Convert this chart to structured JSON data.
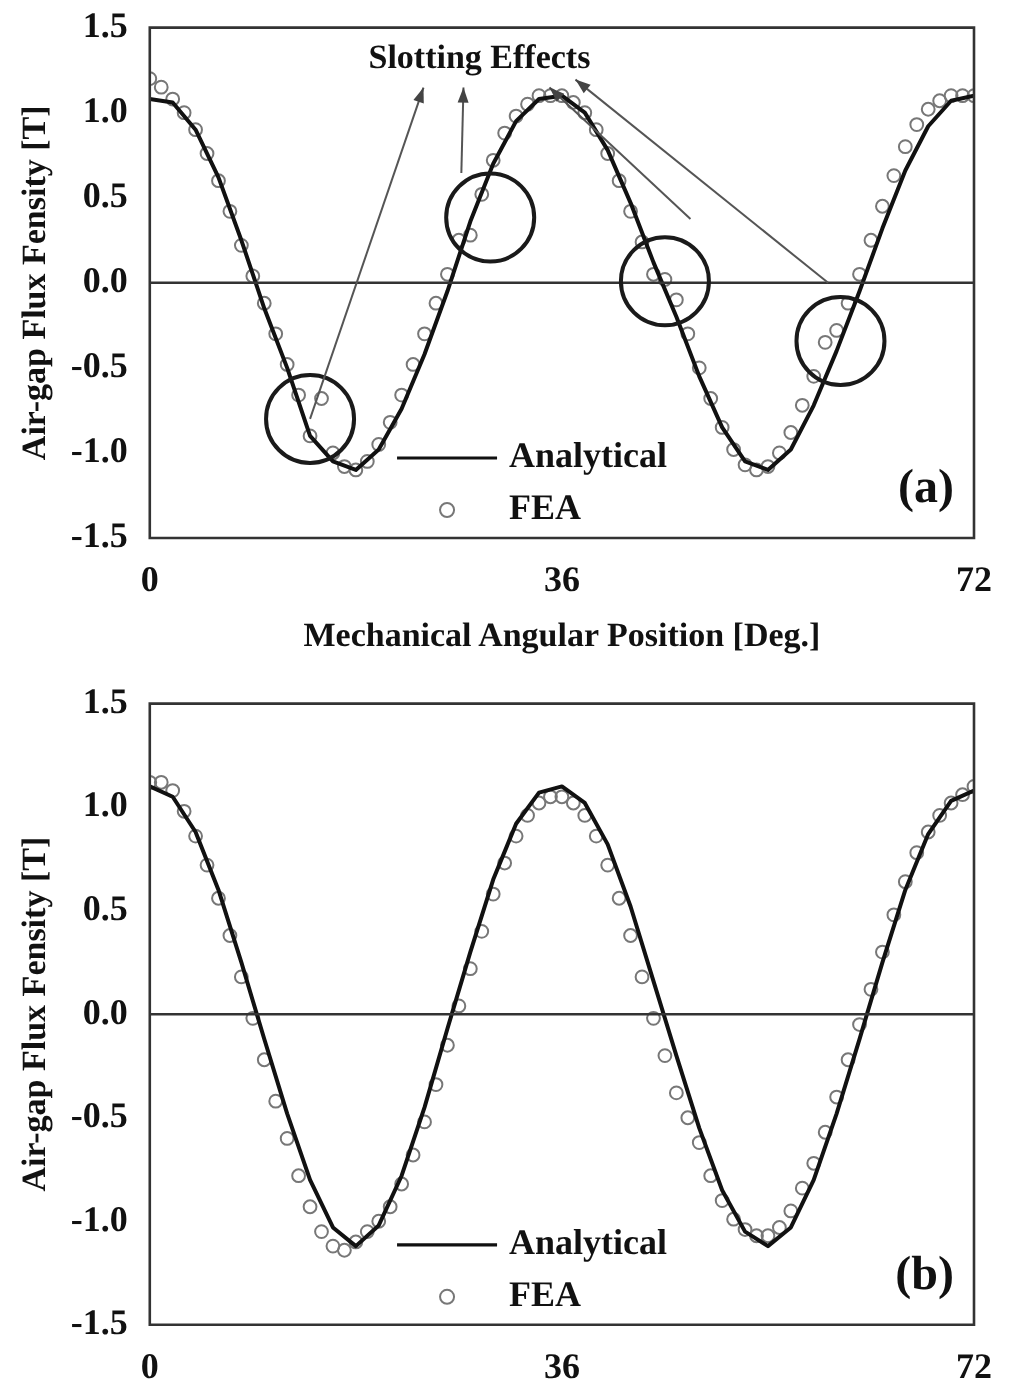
{
  "chart_data": [
    {
      "type": "line",
      "xlabel": "Mechanical Angular Position [Deg.]",
      "ylabel": "Air-gap Flux Fensity [T]",
      "xlim": [
        0,
        72
      ],
      "xticks": [
        0,
        36,
        72
      ],
      "ylim": [
        -1.5,
        1.5
      ],
      "yticks": [
        {
          "value": -1.5,
          "label": "-1.5"
        },
        {
          "value": -1,
          "label": "-1.0"
        },
        {
          "value": -0.5,
          "label": "-0.5"
        },
        {
          "value": 0,
          "label": "0.0"
        },
        {
          "value": 0.5,
          "label": "0.5"
        },
        {
          "value": 1,
          "label": "1.0"
        },
        {
          "value": 1.5,
          "label": "1.5"
        }
      ],
      "legend": "bottom",
      "ref_lines": [
        {
          "axis": "y",
          "value": 0,
          "color": "#333333"
        }
      ],
      "annotations": [
        {
          "text": "Slotting Effects",
          "x": 14,
          "y": -0.8
        },
        "(a)"
      ],
      "series": [
        {
          "name": "Analytical",
          "color": "#111111",
          "marker": "none",
          "x": [
            0,
            2,
            4,
            6,
            8,
            10,
            12,
            14,
            16,
            18,
            20,
            22,
            24,
            26,
            28,
            30,
            32,
            34,
            36,
            38,
            40,
            42,
            44,
            46,
            48,
            50,
            52,
            54,
            56,
            58,
            60,
            62,
            64,
            66,
            68,
            70,
            72
          ],
          "values": [
            1.08,
            1.06,
            0.9,
            0.62,
            0.25,
            -0.15,
            -0.5,
            -0.9,
            -1.05,
            -1.1,
            -0.98,
            -0.74,
            -0.42,
            -0.05,
            0.36,
            0.7,
            0.95,
            1.08,
            1.1,
            1.0,
            0.78,
            0.47,
            0.12,
            -0.2,
            -0.55,
            -0.85,
            -1.05,
            -1.1,
            -0.98,
            -0.72,
            -0.4,
            -0.05,
            0.32,
            0.66,
            0.92,
            1.07,
            1.1
          ]
        },
        {
          "name": "FEA",
          "type": "scatter",
          "color": "#777777",
          "marker": "circle",
          "x": [
            0,
            1,
            2,
            3,
            4,
            5,
            6,
            7,
            8,
            9,
            10,
            11,
            12,
            13,
            14,
            15,
            16,
            17,
            18,
            19,
            20,
            21,
            22,
            23,
            24,
            25,
            26,
            27,
            28,
            29,
            30,
            31,
            32,
            33,
            34,
            35,
            36,
            37,
            38,
            39,
            40,
            41,
            42,
            43,
            44,
            45,
            46,
            47,
            48,
            49,
            50,
            51,
            52,
            53,
            54,
            55,
            56,
            57,
            58,
            59,
            60,
            61,
            62,
            63,
            64,
            65,
            66,
            67,
            68,
            69,
            70,
            71,
            72
          ],
          "values": [
            1.2,
            1.15,
            1.08,
            1.0,
            0.9,
            0.76,
            0.6,
            0.42,
            0.22,
            0.04,
            -0.12,
            -0.3,
            -0.48,
            -0.66,
            -0.9,
            -0.68,
            -1.0,
            -1.08,
            -1.1,
            -1.05,
            -0.95,
            -0.82,
            -0.66,
            -0.48,
            -0.3,
            -0.12,
            0.05,
            0.25,
            0.28,
            0.52,
            0.72,
            0.88,
            0.98,
            1.05,
            1.1,
            1.1,
            1.1,
            1.06,
            1.0,
            0.9,
            0.76,
            0.6,
            0.42,
            0.24,
            0.05,
            0.02,
            -0.1,
            -0.3,
            -0.5,
            -0.68,
            -0.85,
            -0.98,
            -1.07,
            -1.1,
            -1.08,
            -1.0,
            -0.88,
            -0.72,
            -0.55,
            -0.35,
            -0.28,
            -0.12,
            0.05,
            0.25,
            0.45,
            0.63,
            0.8,
            0.93,
            1.02,
            1.07,
            1.1,
            1.1,
            1.1
          ]
        }
      ]
    },
    {
      "type": "line",
      "ylabel": "Air-gap Flux Fensity [T]",
      "xlim": [
        0,
        72
      ],
      "xticks": [
        0,
        36,
        72
      ],
      "ylim": [
        -1.5,
        1.5
      ],
      "yticks": [
        {
          "value": -1.5,
          "label": "-1.5"
        },
        {
          "value": -1,
          "label": "-1.0"
        },
        {
          "value": -0.5,
          "label": "-0.5"
        },
        {
          "value": 0,
          "label": "0.0"
        },
        {
          "value": 0.5,
          "label": "0.5"
        },
        {
          "value": 1,
          "label": "1.0"
        },
        {
          "value": 1.5,
          "label": "1.5"
        }
      ],
      "legend": "bottom",
      "ref_lines": [
        {
          "axis": "y",
          "value": 0,
          "color": "#333333"
        }
      ],
      "annotations": [
        "(b)"
      ],
      "series": [
        {
          "name": "Analytical",
          "color": "#111111",
          "marker": "none",
          "x": [
            0,
            2,
            4,
            6,
            8,
            10,
            12,
            14,
            16,
            18,
            20,
            22,
            24,
            26,
            28,
            30,
            32,
            34,
            36,
            38,
            40,
            42,
            44,
            46,
            48,
            50,
            52,
            54,
            56,
            58,
            60,
            62,
            64,
            66,
            68,
            70,
            72
          ],
          "values": [
            1.1,
            1.05,
            0.88,
            0.6,
            0.25,
            -0.12,
            -0.48,
            -0.8,
            -1.03,
            -1.12,
            -1.02,
            -0.78,
            -0.45,
            -0.07,
            0.3,
            0.65,
            0.92,
            1.07,
            1.1,
            1.02,
            0.82,
            0.52,
            0.16,
            -0.2,
            -0.55,
            -0.85,
            -1.05,
            -1.12,
            -1.03,
            -0.8,
            -0.48,
            -0.12,
            0.25,
            0.6,
            0.87,
            1.03,
            1.08
          ]
        },
        {
          "name": "FEA",
          "type": "scatter",
          "color": "#777777",
          "marker": "circle",
          "x": [
            0,
            1,
            2,
            3,
            4,
            5,
            6,
            7,
            8,
            9,
            10,
            11,
            12,
            13,
            14,
            15,
            16,
            17,
            18,
            19,
            20,
            21,
            22,
            23,
            24,
            25,
            26,
            27,
            28,
            29,
            30,
            31,
            32,
            33,
            34,
            35,
            36,
            37,
            38,
            39,
            40,
            41,
            42,
            43,
            44,
            45,
            46,
            47,
            48,
            49,
            50,
            51,
            52,
            53,
            54,
            55,
            56,
            57,
            58,
            59,
            60,
            61,
            62,
            63,
            64,
            65,
            66,
            67,
            68,
            69,
            70,
            71,
            72
          ],
          "values": [
            1.12,
            1.12,
            1.08,
            0.98,
            0.86,
            0.72,
            0.56,
            0.38,
            0.18,
            -0.02,
            -0.22,
            -0.42,
            -0.6,
            -0.78,
            -0.93,
            -1.05,
            -1.12,
            -1.14,
            -1.1,
            -1.05,
            -1.0,
            -0.93,
            -0.82,
            -0.68,
            -0.52,
            -0.34,
            -0.15,
            0.04,
            0.22,
            0.4,
            0.58,
            0.73,
            0.86,
            0.96,
            1.02,
            1.05,
            1.05,
            1.02,
            0.96,
            0.86,
            0.72,
            0.56,
            0.38,
            0.18,
            -0.02,
            -0.2,
            -0.38,
            -0.5,
            -0.62,
            -0.78,
            -0.9,
            -0.99,
            -1.04,
            -1.07,
            -1.07,
            -1.03,
            -0.95,
            -0.84,
            -0.72,
            -0.57,
            -0.4,
            -0.22,
            -0.05,
            0.12,
            0.3,
            0.48,
            0.64,
            0.78,
            0.88,
            0.96,
            1.02,
            1.06,
            1.1
          ]
        }
      ]
    }
  ]
}
